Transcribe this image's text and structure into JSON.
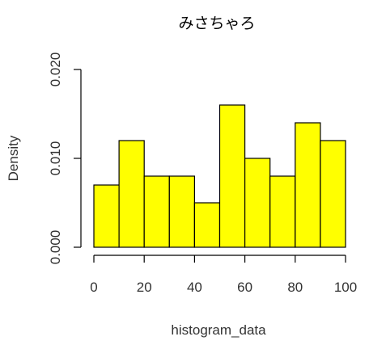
{
  "chart_data": {
    "type": "bar",
    "subtype": "histogram",
    "title": "みさちゃろ",
    "xlabel": "histogram_data",
    "ylabel": "Density",
    "bins": [
      {
        "start": 0,
        "end": 10,
        "density": 0.007
      },
      {
        "start": 10,
        "end": 20,
        "density": 0.012
      },
      {
        "start": 20,
        "end": 30,
        "density": 0.008
      },
      {
        "start": 30,
        "end": 40,
        "density": 0.008
      },
      {
        "start": 40,
        "end": 50,
        "density": 0.005
      },
      {
        "start": 50,
        "end": 60,
        "density": 0.016
      },
      {
        "start": 60,
        "end": 70,
        "density": 0.01
      },
      {
        "start": 70,
        "end": 80,
        "density": 0.008
      },
      {
        "start": 80,
        "end": 90,
        "density": 0.014
      },
      {
        "start": 90,
        "end": 100,
        "density": 0.012
      }
    ],
    "xlim": [
      0,
      100
    ],
    "ylim": [
      0,
      0.02
    ],
    "x_ticks": [
      0,
      20,
      40,
      60,
      80,
      100
    ],
    "x_tick_labels": [
      "0",
      "20",
      "40",
      "60",
      "80",
      "100"
    ],
    "y_ticks": [
      0,
      0.01,
      0.02
    ],
    "y_tick_labels": [
      "0.000",
      "0.010",
      "0.020"
    ],
    "grid": false,
    "legend": "none",
    "bar_color": "#ffff00",
    "bar_edge_color": "#000000"
  }
}
